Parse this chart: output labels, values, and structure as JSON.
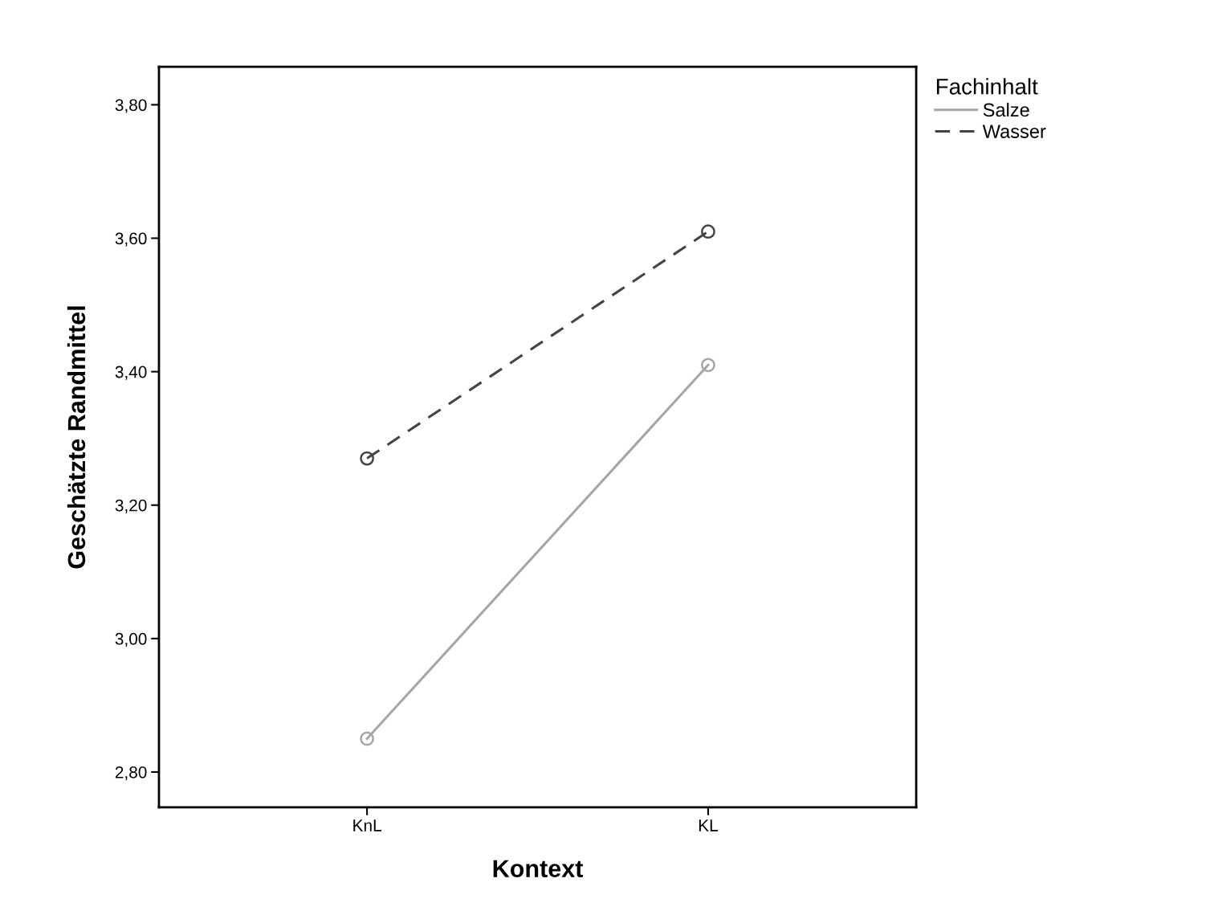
{
  "chart_data": {
    "type": "line",
    "xlabel": "Kontext",
    "ylabel": "Geschätzte Randmittel",
    "legend_title": "Fachinhalt",
    "categories": [
      "KnL",
      "KL"
    ],
    "series": [
      {
        "name": "Salze",
        "color": "#a6a6a6",
        "values": [
          2.85,
          3.41
        ],
        "line_style": "solid"
      },
      {
        "name": "Wasser",
        "color": "#444444",
        "values": [
          3.27,
          3.61
        ],
        "line_style": "dashed"
      }
    ],
    "marker": "circle",
    "ylim": [
      2.747,
      3.857
    ],
    "yticks": [
      {
        "value": 2.8,
        "label": "2,80"
      },
      {
        "value": 3.0,
        "label": "3,00"
      },
      {
        "value": 3.2,
        "label": "3,20"
      },
      {
        "value": 3.4,
        "label": "3,40"
      },
      {
        "value": 3.6,
        "label": "3,60"
      },
      {
        "value": 3.8,
        "label": "3,80"
      }
    ],
    "grid": false,
    "legend": "top right"
  }
}
